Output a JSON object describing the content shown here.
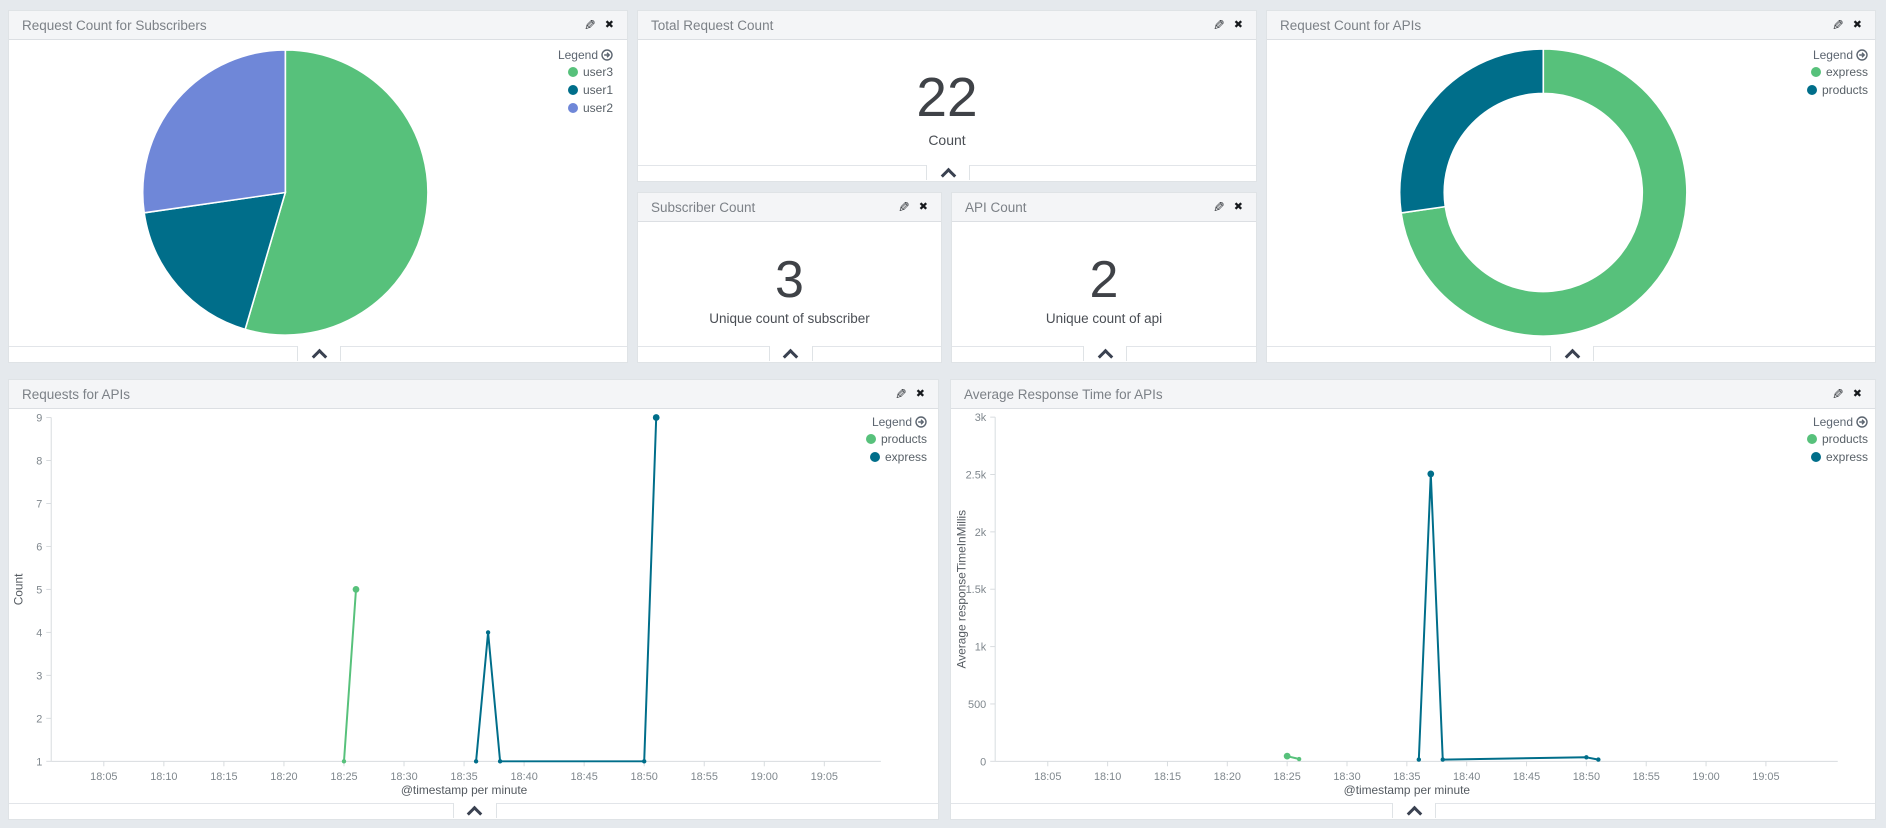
{
  "legend_label": "Legend",
  "colors": {
    "green": "#57c17b",
    "teal": "#006e8a",
    "purple": "#6f87d8",
    "metric_text": "#3f4247",
    "axis_line": "#d8dcdf",
    "tick_text": "#7f878d",
    "axis_label_text": "#545a60"
  },
  "panels": {
    "pie": {
      "title": "Request Count for Subscribers"
    },
    "total": {
      "title": "Total Request Count",
      "value": "22",
      "label": "Count"
    },
    "subscriber": {
      "title": "Subscriber Count",
      "value": "3",
      "label": "Unique count of subscriber"
    },
    "api_count": {
      "title": "API Count",
      "value": "2",
      "label": "Unique count of api"
    },
    "donut": {
      "title": "Request Count for APIs"
    },
    "requests": {
      "title": "Requests for APIs"
    },
    "response": {
      "title": "Average Response Time for APIs"
    }
  },
  "chart_data": [
    {
      "id": "pie_subscribers",
      "type": "pie",
      "title": "Request Count for Subscribers",
      "categories": [
        "user3",
        "user1",
        "user2"
      ],
      "values": [
        12,
        4,
        6
      ],
      "colors": [
        "#57c17b",
        "#006e8a",
        "#6f87d8"
      ],
      "legend_position": "top-right",
      "start_angle": "top, clockwise"
    },
    {
      "id": "donut_apis",
      "type": "pie",
      "subtype": "donut",
      "title": "Request Count for APIs",
      "categories": [
        "express",
        "products"
      ],
      "values": [
        16,
        6
      ],
      "colors": [
        "#57c17b",
        "#006e8a"
      ],
      "legend_position": "top-right",
      "start_angle": "top, clockwise"
    },
    {
      "id": "requests_for_apis",
      "type": "line",
      "title": "Requests for APIs",
      "xlabel": "@timestamp per minute",
      "ylabel": "Count",
      "ylim": [
        1,
        9
      ],
      "yticks": [
        1,
        2,
        3,
        4,
        5,
        6,
        7,
        8,
        9
      ],
      "ytick_labels": [
        "1",
        "2",
        "3",
        "4",
        "5",
        "6",
        "7",
        "8",
        "9"
      ],
      "xticks": [
        "18:05",
        "18:10",
        "18:15",
        "18:20",
        "18:25",
        "18:30",
        "18:35",
        "18:40",
        "18:45",
        "18:50",
        "18:55",
        "19:00",
        "19:05"
      ],
      "grid": false,
      "series": [
        {
          "name": "products",
          "color": "#57c17b",
          "points": [
            [
              "18:25",
              1
            ],
            [
              "18:26",
              5
            ]
          ]
        },
        {
          "name": "express",
          "color": "#006e8a",
          "points": [
            [
              "18:36",
              1
            ],
            [
              "18:37",
              4
            ],
            [
              "18:38",
              1
            ],
            [
              "18:50",
              1
            ],
            [
              "18:51",
              9
            ]
          ]
        }
      ]
    },
    {
      "id": "avg_response_time_for_apis",
      "type": "line",
      "title": "Average Response Time for APIs",
      "xlabel": "@timestamp per minute",
      "ylabel": "Average responseTimeInMillis",
      "ylim": [
        0,
        3000
      ],
      "yticks": [
        0,
        500,
        1000,
        1500,
        2000,
        2500,
        3000
      ],
      "ytick_labels": [
        "0",
        "500",
        "1k",
        "1.5k",
        "2k",
        "2.5k",
        "3k"
      ],
      "xticks": [
        "18:05",
        "18:10",
        "18:15",
        "18:20",
        "18:25",
        "18:30",
        "18:35",
        "18:40",
        "18:45",
        "18:50",
        "18:55",
        "19:00",
        "19:05"
      ],
      "grid": false,
      "series": [
        {
          "name": "products",
          "color": "#57c17b",
          "points": [
            [
              "18:25",
              45
            ],
            [
              "18:26",
              20
            ]
          ]
        },
        {
          "name": "express",
          "color": "#006e8a",
          "points": [
            [
              "18:36",
              15
            ],
            [
              "18:37",
              2505
            ],
            [
              "18:38",
              15
            ],
            [
              "18:50",
              35
            ],
            [
              "18:51",
              15
            ]
          ]
        }
      ]
    },
    {
      "id": "total_request_count",
      "type": "metric",
      "title": "Total Request Count",
      "value": 22,
      "label": "Count"
    },
    {
      "id": "subscriber_count",
      "type": "metric",
      "title": "Subscriber Count",
      "value": 3,
      "label": "Unique count of subscriber"
    },
    {
      "id": "api_count",
      "type": "metric",
      "title": "API Count",
      "value": 2,
      "label": "Unique count of api"
    }
  ]
}
